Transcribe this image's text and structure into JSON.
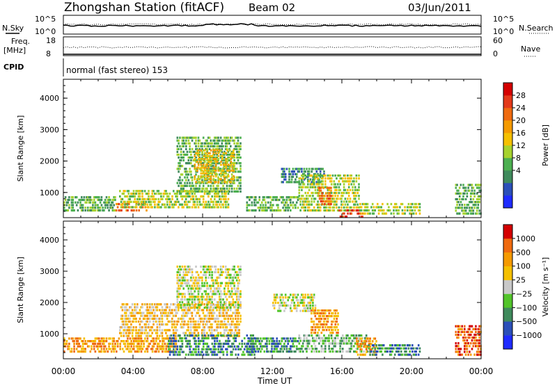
{
  "header": {
    "station": "Zhongshan Station (fitACF)",
    "beam": "Beam 02",
    "date": "03/Jun/2011"
  },
  "sky_panel": {
    "left_label": "N.Sky",
    "right_label": "N.Search",
    "left_ticks": [
      "10^5",
      "10^0"
    ],
    "right_ticks": [
      "10^5",
      "10^0"
    ]
  },
  "freq_panel": {
    "left_label_1": "Freq.",
    "left_label_2": "[MHz]",
    "right_label": "Nave",
    "left_ticks": [
      "18",
      "8"
    ],
    "right_ticks": [
      "60",
      "0"
    ]
  },
  "cpid": {
    "label": "CPID",
    "text": "normal (fast stereo) 153"
  },
  "x_axis": {
    "label": "Time UT",
    "ticks": [
      "00:00",
      "04:00",
      "08:00",
      "12:00",
      "16:00",
      "20:00",
      "00:00"
    ]
  },
  "chart_data": [
    {
      "type": "heatmap",
      "ylabel": "Slant Range [km]",
      "xlabel": "Time UT",
      "x_ticks": [
        "00:00",
        "04:00",
        "08:00",
        "12:00",
        "16:00",
        "20:00",
        "00:00"
      ],
      "y_ticks": [
        1000,
        2000,
        3000,
        4000
      ],
      "ylim": [
        200,
        4600
      ],
      "xlim_hours": [
        0,
        24
      ],
      "colorbar": {
        "label": "Power [dB]",
        "ticks": [
          "28",
          "24",
          "20",
          "16",
          "12",
          "8",
          "4"
        ],
        "colors": [
          "#1f2bff",
          "#2b4fb8",
          "#3f8a5c",
          "#4caf50",
          "#a6d22e",
          "#f5c000",
          "#f59a00",
          "#ef6a0f",
          "#e3391a",
          "#d40000"
        ]
      },
      "regions": [
        {
          "t0": 0.0,
          "t1": 3.0,
          "r0": 400,
          "r1": 900,
          "level": 3
        },
        {
          "t0": 3.0,
          "t1": 4.8,
          "r0": 400,
          "r1": 700,
          "level": 7
        },
        {
          "t0": 3.2,
          "t1": 9.5,
          "r0": 500,
          "r1": 1100,
          "level": 4
        },
        {
          "t0": 6.5,
          "t1": 10.2,
          "r0": 1000,
          "r1": 2800,
          "level": 3
        },
        {
          "t0": 7.5,
          "t1": 9.8,
          "r0": 1300,
          "r1": 2400,
          "level": 5
        },
        {
          "t0": 10.5,
          "t1": 13.5,
          "r0": 400,
          "r1": 900,
          "level": 3
        },
        {
          "t0": 12.5,
          "t1": 15.0,
          "r0": 1300,
          "r1": 1800,
          "level": 2
        },
        {
          "t0": 13.5,
          "t1": 17.0,
          "r0": 400,
          "r1": 1600,
          "level": 4
        },
        {
          "t0": 14.6,
          "t1": 15.4,
          "r0": 600,
          "r1": 1200,
          "level": 7
        },
        {
          "t0": 15.8,
          "t1": 17.2,
          "r0": 200,
          "r1": 500,
          "level": 8
        },
        {
          "t0": 17.0,
          "t1": 20.5,
          "r0": 300,
          "r1": 700,
          "level": 4
        },
        {
          "t0": 22.5,
          "t1": 24.0,
          "r0": 300,
          "r1": 1300,
          "level": 3
        }
      ]
    },
    {
      "type": "heatmap",
      "ylabel": "Slant Range [km]",
      "xlabel": "Time UT",
      "x_ticks": [
        "00:00",
        "04:00",
        "08:00",
        "12:00",
        "16:00",
        "20:00",
        "00:00"
      ],
      "y_ticks": [
        1000,
        2000,
        3000,
        4000
      ],
      "ylim": [
        200,
        4600
      ],
      "xlim_hours": [
        0,
        24
      ],
      "colorbar": {
        "label": "Velocity [m s⁻¹]",
        "ticks": [
          "1000",
          "500",
          "100",
          "25",
          "−25",
          "−100",
          "−500",
          "−1000"
        ],
        "colors": [
          "#1f2bff",
          "#2b4fb8",
          "#3f8a5c",
          "#52c42a",
          "#c8c8c8",
          "#f5c000",
          "#f59a00",
          "#ef6a0f",
          "#d40000"
        ]
      },
      "regions": [
        {
          "t0": 0.0,
          "t1": 6.5,
          "r0": 400,
          "r1": 900,
          "level": 6
        },
        {
          "t0": 3.2,
          "t1": 10.2,
          "r0": 900,
          "r1": 2000,
          "level": 5
        },
        {
          "t0": 6.5,
          "t1": 10.2,
          "r0": 1800,
          "r1": 3200,
          "level": 4
        },
        {
          "t0": 6.0,
          "t1": 11.0,
          "r0": 300,
          "r1": 1000,
          "level": 2
        },
        {
          "t0": 10.5,
          "t1": 13.5,
          "r0": 400,
          "r1": 900,
          "level": 2
        },
        {
          "t0": 12.0,
          "t1": 14.5,
          "r0": 1700,
          "r1": 2300,
          "level": 4
        },
        {
          "t0": 14.2,
          "t1": 15.8,
          "r0": 1000,
          "r1": 1800,
          "level": 6
        },
        {
          "t0": 13.5,
          "t1": 17.5,
          "r0": 400,
          "r1": 1000,
          "level": 3
        },
        {
          "t0": 16.8,
          "t1": 18.0,
          "r0": 300,
          "r1": 900,
          "level": 6
        },
        {
          "t0": 17.5,
          "t1": 20.5,
          "r0": 300,
          "r1": 700,
          "level": 2
        },
        {
          "t0": 22.5,
          "t1": 24.0,
          "r0": 300,
          "r1": 1300,
          "level": 7
        }
      ]
    }
  ]
}
